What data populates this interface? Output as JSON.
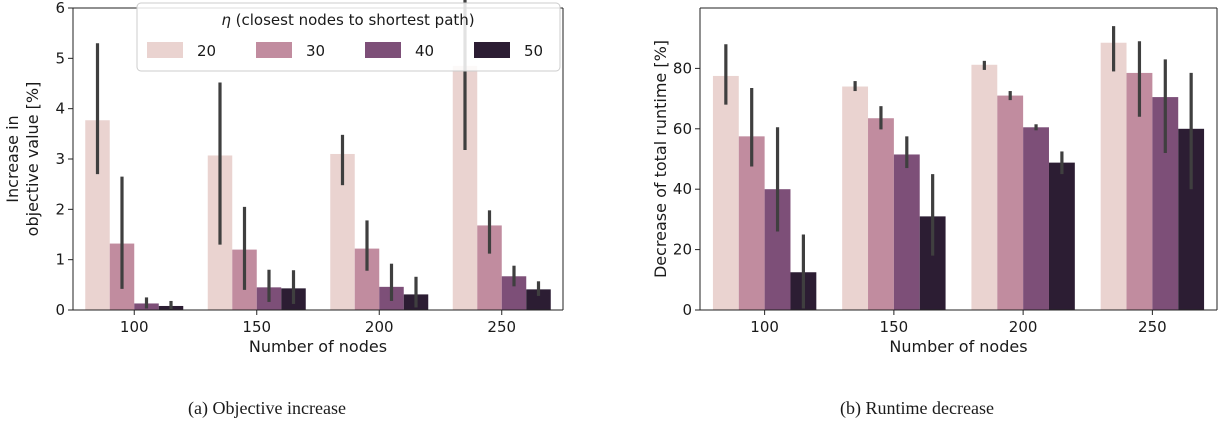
{
  "chart_data": [
    {
      "type": "bar",
      "caption": "(a) Objective increase",
      "xlabel": "Number of nodes",
      "ylabel_lines": [
        "Increase in",
        "objective value [%]"
      ],
      "categories": [
        "100",
        "150",
        "200",
        "250"
      ],
      "ylim": [
        0,
        6
      ],
      "yticks": [
        "0",
        "1",
        "2",
        "3",
        "4",
        "5",
        "6"
      ],
      "grid": false,
      "legend": {
        "placement": "top-right",
        "title_symbol": "η",
        "title_rest": " (closest nodes to shortest path)",
        "entries": [
          "20",
          "30",
          "40",
          "50"
        ]
      },
      "series": [
        {
          "name": "20",
          "color": "#ead3d0",
          "values": [
            3.77,
            3.07,
            3.1,
            4.85
          ],
          "err_low": [
            2.7,
            1.3,
            2.48,
            3.18
          ],
          "err_high": [
            5.3,
            4.52,
            3.48,
            6.2
          ]
        },
        {
          "name": "30",
          "color": "#c18c9f",
          "values": [
            1.32,
            1.2,
            1.22,
            1.68
          ],
          "err_low": [
            0.42,
            0.4,
            0.78,
            1.12
          ],
          "err_high": [
            2.65,
            2.05,
            1.78,
            1.98
          ]
        },
        {
          "name": "40",
          "color": "#7d4f78",
          "values": [
            0.13,
            0.45,
            0.46,
            0.67
          ],
          "err_low": [
            0.03,
            0.16,
            0.18,
            0.47
          ],
          "err_high": [
            0.25,
            0.8,
            0.92,
            0.88
          ]
        },
        {
          "name": "50",
          "color": "#2c1d33",
          "values": [
            0.08,
            0.43,
            0.31,
            0.41
          ],
          "err_low": [
            0.02,
            0.12,
            0.05,
            0.28
          ],
          "err_high": [
            0.18,
            0.79,
            0.66,
            0.57
          ]
        }
      ]
    },
    {
      "type": "bar",
      "caption": "(b) Runtime decrease",
      "xlabel": "Number of nodes",
      "ylabel_lines": [
        "Decrease of total runtime [%]"
      ],
      "categories": [
        "100",
        "150",
        "200",
        "250"
      ],
      "ylim": [
        0,
        100
      ],
      "yticks": [
        "0",
        "20",
        "40",
        "60",
        "80"
      ],
      "grid": false,
      "series": [
        {
          "name": "20",
          "color": "#ead3d0",
          "values": [
            77.5,
            74.0,
            81.2,
            88.5
          ],
          "err_low": [
            68.0,
            72.5,
            79.5,
            79.0
          ],
          "err_high": [
            88.0,
            75.8,
            82.5,
            94.0
          ]
        },
        {
          "name": "30",
          "color": "#c18c9f",
          "values": [
            57.5,
            63.5,
            71.0,
            78.5
          ],
          "err_low": [
            47.5,
            59.8,
            69.5,
            64.0
          ],
          "err_high": [
            73.5,
            67.5,
            72.5,
            89.0
          ]
        },
        {
          "name": "40",
          "color": "#7d4f78",
          "values": [
            40.0,
            51.5,
            60.5,
            70.5
          ],
          "err_low": [
            26.0,
            47.0,
            59.5,
            52.0
          ],
          "err_high": [
            60.5,
            57.5,
            61.5,
            83.0
          ]
        },
        {
          "name": "50",
          "color": "#2c1d33",
          "values": [
            12.5,
            31.0,
            48.8,
            60.0
          ],
          "err_low": [
            0.5,
            18.0,
            45.0,
            40.0
          ],
          "err_high": [
            25.0,
            45.0,
            52.5,
            78.5
          ]
        }
      ]
    }
  ]
}
